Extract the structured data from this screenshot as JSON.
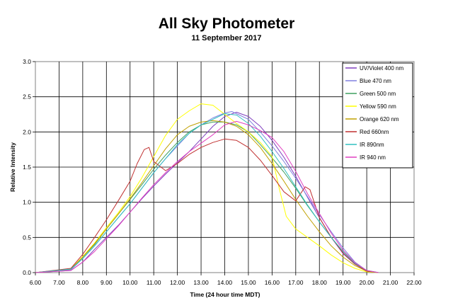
{
  "chart_data": {
    "type": "line",
    "title": "All Sky Photometer",
    "subtitle": "11 September 2017",
    "xlabel": "Time (24 hour time MDT)",
    "ylabel": "Relative Intensity",
    "xlim": [
      6.0,
      22.0
    ],
    "ylim": [
      0.0,
      3.0
    ],
    "x_ticks": [
      "6.00",
      "7.00",
      "8.00",
      "9.00",
      "10.00",
      "11.00",
      "12.00",
      "13.00",
      "14.00",
      "15.00",
      "16.00",
      "17.00",
      "18.00",
      "19.00",
      "20.00",
      "21.00",
      "22.00"
    ],
    "y_ticks": [
      "0.0",
      "0.5",
      "1.0",
      "1.5",
      "2.0",
      "2.5",
      "3.0"
    ],
    "grid": true,
    "legend_position": "right",
    "series": [
      {
        "name": "UV/Violet 400 nm",
        "color": "#7f3fbf",
        "x": [
          6.0,
          7.5,
          8.0,
          8.5,
          9.0,
          9.5,
          10.0,
          10.5,
          11.0,
          11.5,
          12.0,
          12.5,
          13.0,
          13.5,
          14.0,
          14.5,
          15.0,
          15.5,
          16.0,
          16.5,
          17.0,
          17.5,
          18.0,
          18.5,
          19.0,
          19.5,
          20.0,
          20.5
        ],
        "y": [
          0.0,
          0.03,
          0.15,
          0.33,
          0.5,
          0.67,
          0.86,
          1.05,
          1.23,
          1.4,
          1.56,
          1.72,
          1.9,
          2.08,
          2.22,
          2.28,
          2.22,
          2.08,
          1.88,
          1.64,
          1.37,
          1.07,
          0.78,
          0.5,
          0.27,
          0.12,
          0.03,
          0.0
        ]
      },
      {
        "name": "Blue 470 nm",
        "color": "#8080e0",
        "x": [
          6.0,
          7.5,
          8.0,
          8.5,
          9.0,
          9.5,
          10.0,
          10.5,
          11.0,
          11.5,
          12.0,
          12.5,
          13.0,
          13.5,
          14.0,
          14.3,
          15.0,
          15.5,
          16.0,
          16.5,
          17.0,
          17.5,
          18.0,
          18.5,
          19.0,
          19.5,
          20.0,
          20.5
        ],
        "y": [
          0.0,
          0.04,
          0.2,
          0.38,
          0.58,
          0.78,
          0.98,
          1.2,
          1.42,
          1.62,
          1.8,
          1.98,
          2.1,
          2.2,
          2.27,
          2.29,
          2.18,
          2.0,
          1.8,
          1.58,
          1.34,
          1.08,
          0.82,
          0.58,
          0.35,
          0.15,
          0.03,
          0.0
        ]
      },
      {
        "name": "Green 500 nm",
        "color": "#3fa05f",
        "x": [
          6.0,
          7.5,
          8.0,
          8.5,
          9.0,
          9.5,
          10.0,
          10.5,
          11.0,
          11.5,
          12.0,
          12.5,
          13.0,
          13.5,
          14.0,
          14.5,
          15.0,
          15.5,
          16.0,
          16.5,
          17.0,
          17.5,
          18.0,
          18.5,
          19.0,
          19.5,
          20.0,
          20.5
        ],
        "y": [
          0.0,
          0.05,
          0.22,
          0.4,
          0.62,
          0.83,
          1.04,
          1.25,
          1.47,
          1.67,
          1.85,
          2.0,
          2.1,
          2.14,
          2.14,
          2.1,
          2.0,
          1.82,
          1.63,
          1.43,
          1.2,
          0.95,
          0.72,
          0.5,
          0.3,
          0.13,
          0.02,
          0.0
        ]
      },
      {
        "name": "Yellow 590 nm",
        "color": "#ffff00",
        "x": [
          6.0,
          7.5,
          8.0,
          8.5,
          9.0,
          9.5,
          10.0,
          10.5,
          11.0,
          11.5,
          12.0,
          12.5,
          13.0,
          13.5,
          14.0,
          14.5,
          15.0,
          15.5,
          16.0,
          16.3,
          16.6,
          17.0,
          17.5,
          18.0,
          18.5,
          19.0,
          19.5,
          20.0,
          20.5
        ],
        "y": [
          0.0,
          0.05,
          0.23,
          0.42,
          0.64,
          0.85,
          1.08,
          1.35,
          1.65,
          1.95,
          2.18,
          2.3,
          2.4,
          2.38,
          2.25,
          2.12,
          2.0,
          1.85,
          1.65,
          1.2,
          0.8,
          0.62,
          0.5,
          0.38,
          0.25,
          0.14,
          0.06,
          0.01,
          0.0
        ]
      },
      {
        "name": "Orange 620 nm",
        "color": "#c0a000",
        "x": [
          6.0,
          7.5,
          8.0,
          8.5,
          9.0,
          9.5,
          10.0,
          10.5,
          11.0,
          11.5,
          12.0,
          12.5,
          13.0,
          13.5,
          14.0,
          14.5,
          15.0,
          15.5,
          16.0,
          16.5,
          17.0,
          17.5,
          18.0,
          18.5,
          19.0,
          19.5,
          20.0,
          20.5
        ],
        "y": [
          0.0,
          0.05,
          0.22,
          0.41,
          0.62,
          0.83,
          1.05,
          1.28,
          1.52,
          1.76,
          1.96,
          2.08,
          2.14,
          2.16,
          2.14,
          2.08,
          1.96,
          1.78,
          1.55,
          1.3,
          1.04,
          0.8,
          0.58,
          0.38,
          0.22,
          0.1,
          0.02,
          0.0
        ]
      },
      {
        "name": "Red 660nm",
        "color": "#c03030",
        "x": [
          6.0,
          7.5,
          8.0,
          8.5,
          9.0,
          9.5,
          10.0,
          10.3,
          10.6,
          10.8,
          11.0,
          11.5,
          12.0,
          12.5,
          13.0,
          13.5,
          14.0,
          14.5,
          15.0,
          15.5,
          16.0,
          16.5,
          17.0,
          17.2,
          17.4,
          17.6,
          17.8,
          18.0,
          18.5,
          19.0,
          19.5,
          20.0,
          20.5
        ],
        "y": [
          0.0,
          0.06,
          0.26,
          0.5,
          0.75,
          1.02,
          1.3,
          1.55,
          1.75,
          1.78,
          1.58,
          1.45,
          1.55,
          1.68,
          1.78,
          1.85,
          1.9,
          1.88,
          1.78,
          1.6,
          1.38,
          1.15,
          1.02,
          1.12,
          1.22,
          1.18,
          0.98,
          0.78,
          0.5,
          0.28,
          0.12,
          0.02,
          0.0
        ]
      },
      {
        "name": "IR 890nm",
        "color": "#30c0c0",
        "x": [
          6.0,
          7.5,
          8.0,
          8.5,
          9.0,
          9.5,
          10.0,
          10.5,
          11.0,
          11.5,
          12.0,
          12.5,
          13.0,
          13.5,
          14.0,
          14.5,
          15.0,
          15.5,
          16.0,
          16.5,
          17.0,
          17.5,
          18.0,
          18.5,
          19.0,
          19.5,
          20.0,
          20.5
        ],
        "y": [
          0.0,
          0.05,
          0.2,
          0.38,
          0.58,
          0.78,
          0.98,
          1.2,
          1.42,
          1.62,
          1.82,
          1.98,
          2.1,
          2.18,
          2.26,
          2.24,
          2.12,
          1.94,
          1.72,
          1.48,
          1.22,
          0.96,
          0.72,
          0.5,
          0.3,
          0.13,
          0.03,
          0.0
        ]
      },
      {
        "name": "IR 940 nm",
        "color": "#e040c0",
        "x": [
          6.0,
          7.5,
          8.0,
          8.5,
          9.0,
          9.5,
          10.0,
          10.5,
          11.0,
          11.5,
          12.0,
          12.5,
          13.0,
          13.5,
          14.0,
          14.5,
          15.0,
          15.5,
          16.0,
          16.5,
          17.0,
          17.5,
          18.0,
          18.5,
          19.0,
          19.5,
          20.0,
          20.5
        ],
        "y": [
          0.0,
          0.03,
          0.15,
          0.3,
          0.48,
          0.66,
          0.86,
          1.06,
          1.25,
          1.42,
          1.58,
          1.72,
          1.84,
          1.96,
          2.1,
          2.15,
          2.1,
          2.02,
          1.92,
          1.72,
          1.44,
          1.12,
          0.84,
          0.56,
          0.32,
          0.14,
          0.03,
          0.0
        ]
      }
    ]
  }
}
